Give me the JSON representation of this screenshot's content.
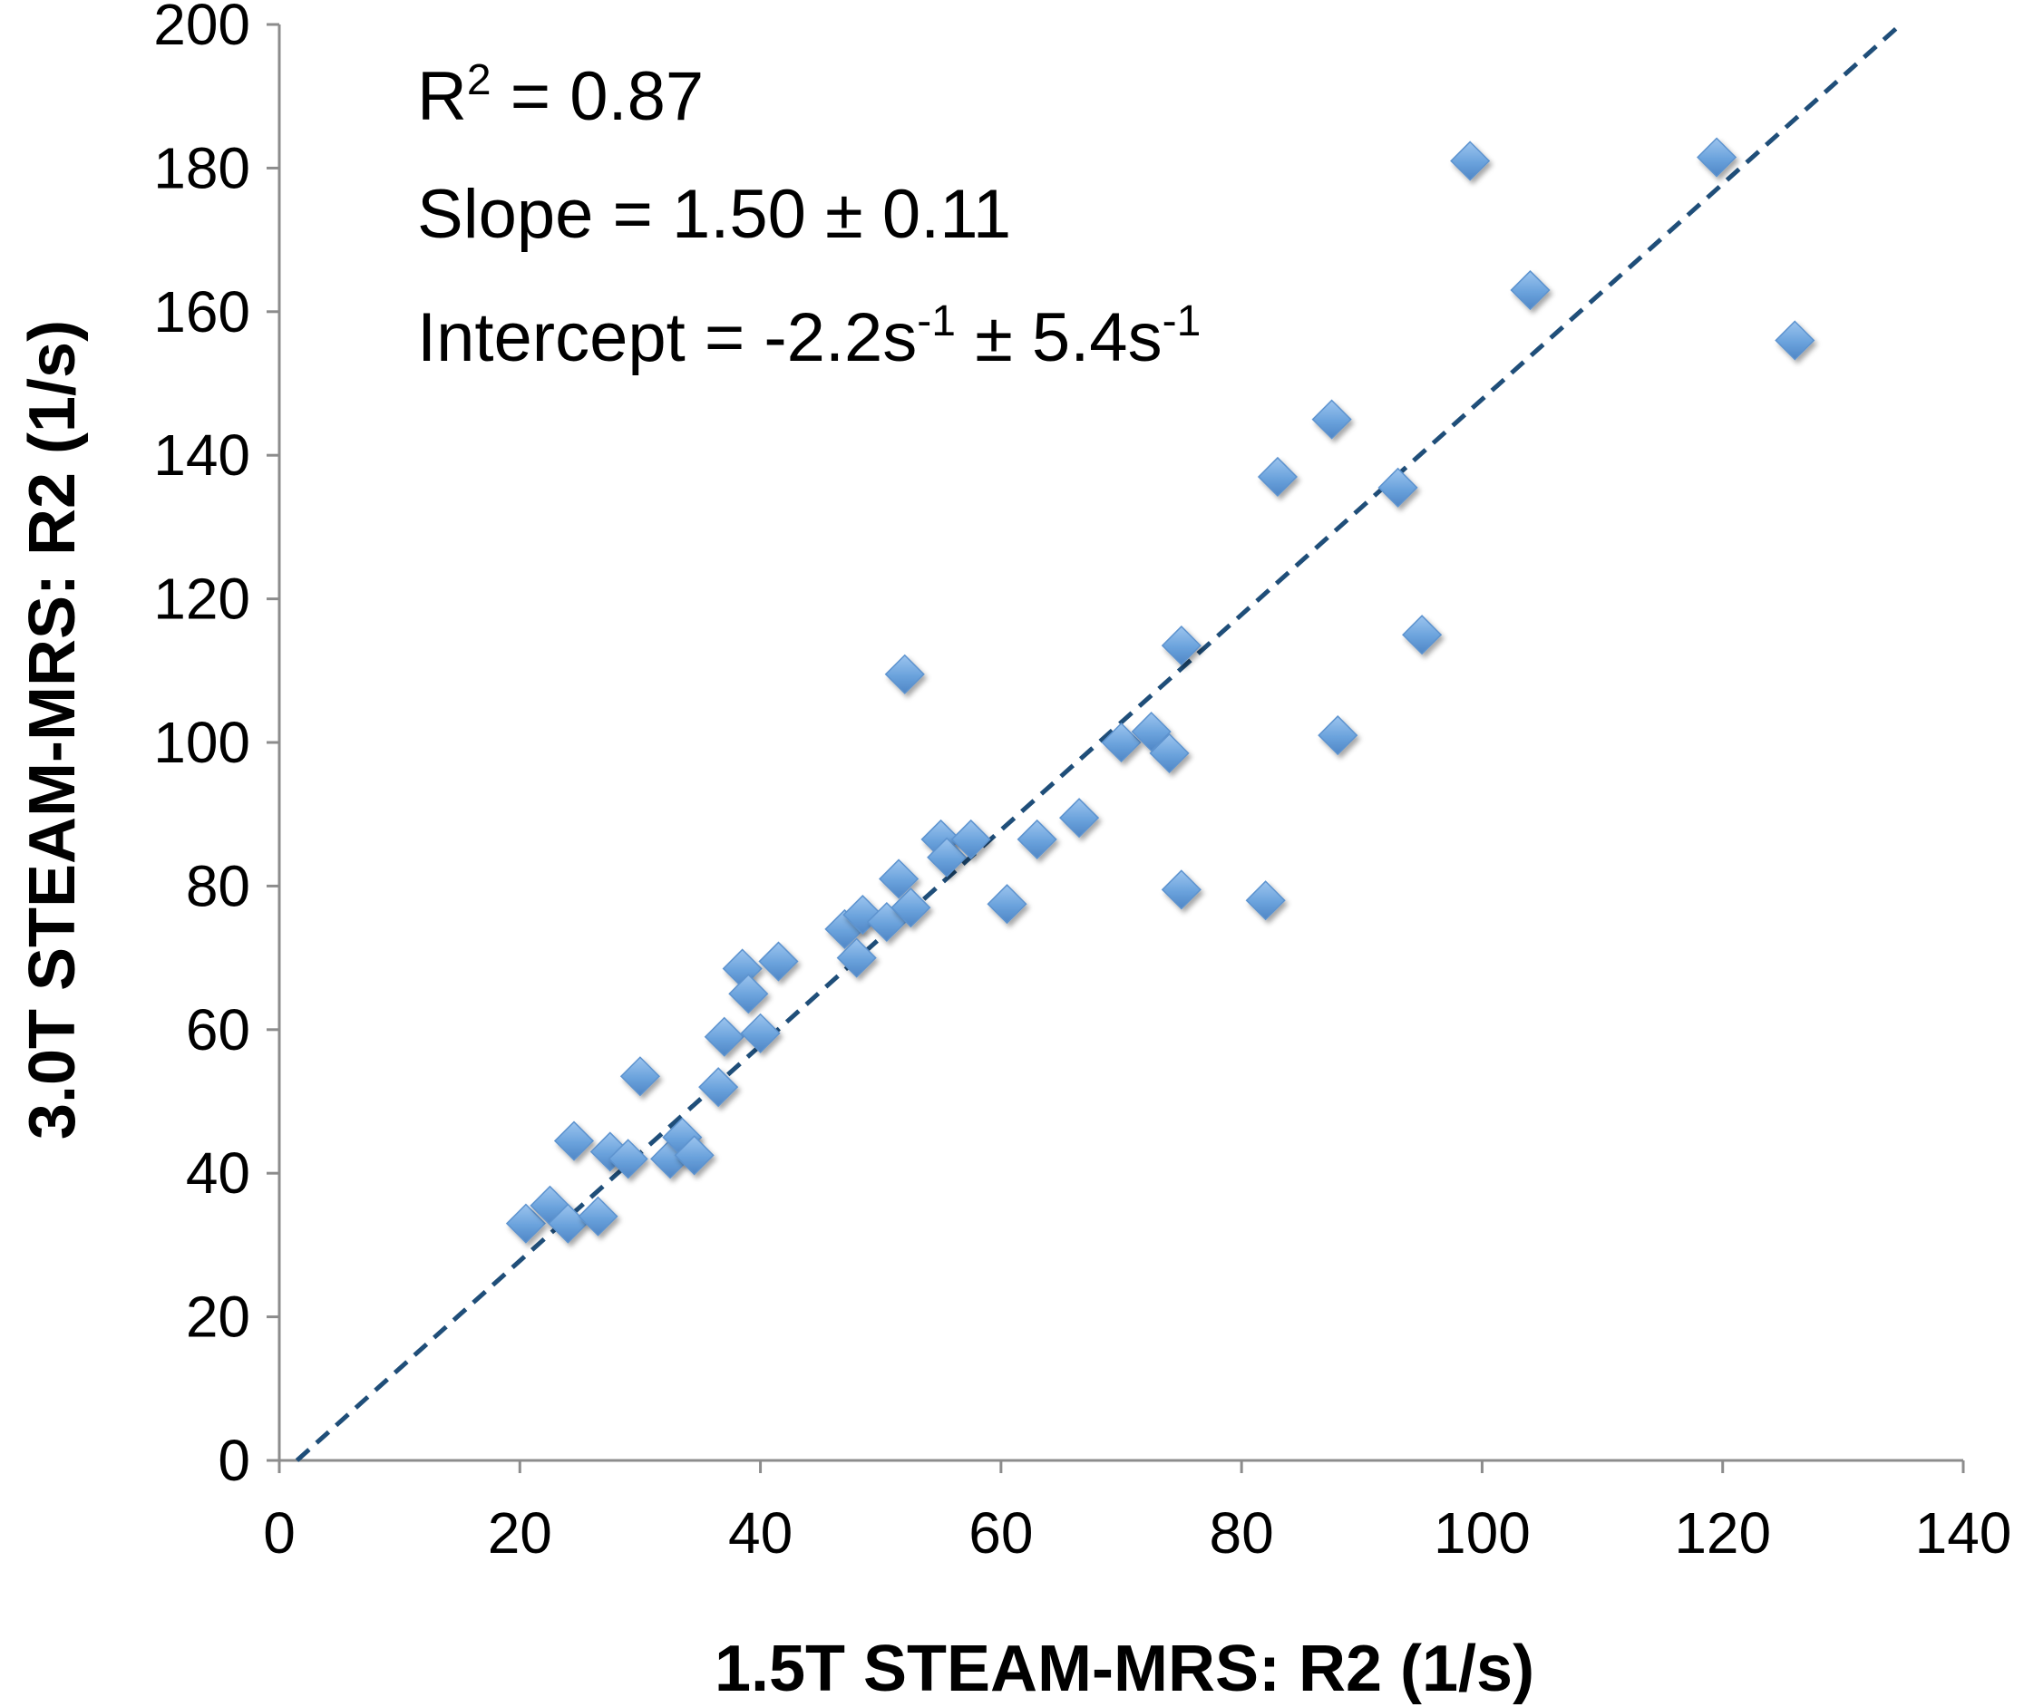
{
  "chart_data": {
    "type": "scatter",
    "title": "",
    "xlabel": "1.5T STEAM-MRS: R2 (1/s)",
    "ylabel": "3.0T STEAM-MRS: R2 (1/s)",
    "xlim": [
      0,
      140
    ],
    "ylim": [
      0,
      200
    ],
    "xticks": [
      "0",
      "20",
      "40",
      "60",
      "80",
      "100",
      "120",
      "140"
    ],
    "yticks": [
      "0",
      "20",
      "40",
      "60",
      "80",
      "100",
      "120",
      "140",
      "160",
      "180",
      "200"
    ],
    "grid": false,
    "legend": "none",
    "marker": "diamond",
    "marker_color": "#6aa2dc",
    "line_color": "#1f4e79",
    "annotations": {
      "r2_base": "R",
      "r2_sup": "2",
      "r2_rest": " = 0.87",
      "slope": "Slope = 1.50 ± 0.11",
      "intercept_a": "Intercept = -2.2s",
      "intercept_sup1": "-1",
      "intercept_b": " ± 5.4s",
      "intercept_sup2": "-1"
    },
    "fit_line": {
      "slope": 1.5,
      "intercept": -2.2,
      "style": "dashed"
    },
    "series": [
      {
        "points": [
          [
            20.5,
            33
          ],
          [
            22.5,
            35.5
          ],
          [
            24,
            33
          ],
          [
            24.5,
            44.5
          ],
          [
            26.5,
            34
          ],
          [
            27.5,
            43
          ],
          [
            29,
            42
          ],
          [
            30,
            53.5
          ],
          [
            32.5,
            42
          ],
          [
            33.5,
            45
          ],
          [
            34.5,
            42.5
          ],
          [
            36.5,
            52
          ],
          [
            37,
            59
          ],
          [
            38.5,
            68.5
          ],
          [
            39,
            65
          ],
          [
            40,
            59.5
          ],
          [
            41.5,
            69.5
          ],
          [
            47,
            74
          ],
          [
            48,
            70
          ],
          [
            48.5,
            76
          ],
          [
            50.5,
            75
          ],
          [
            51.5,
            81
          ],
          [
            52,
            109.5
          ],
          [
            52.5,
            77
          ],
          [
            55,
            86.5
          ],
          [
            55.5,
            84
          ],
          [
            57.5,
            86.5
          ],
          [
            60.5,
            77.5
          ],
          [
            63,
            86.5
          ],
          [
            66.5,
            89.5
          ],
          [
            70,
            100
          ],
          [
            72.5,
            101.5
          ],
          [
            74,
            98.5
          ],
          [
            75,
            113.5
          ],
          [
            75,
            79.5
          ],
          [
            82,
            78
          ],
          [
            83,
            137
          ],
          [
            87.5,
            145
          ],
          [
            88,
            101
          ],
          [
            93,
            135.5
          ],
          [
            95,
            115
          ],
          [
            99,
            181
          ],
          [
            104,
            163
          ],
          [
            119.5,
            181.5
          ],
          [
            126,
            156
          ]
        ]
      }
    ]
  }
}
